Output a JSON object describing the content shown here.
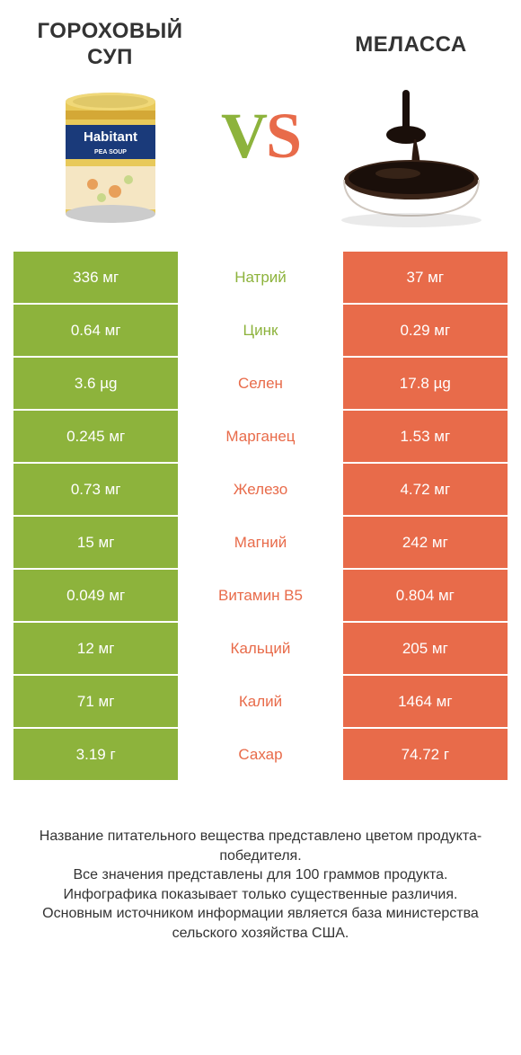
{
  "colors": {
    "left": "#8db33c",
    "right": "#e86b4a",
    "rowMidBg": "#ffffff",
    "text": "#333333"
  },
  "header": {
    "leftTitle": "ГОРОХОВЫЙ СУП",
    "rightTitle": "МЕЛАССА",
    "vsLetterV": "V",
    "vsLetterS": "S"
  },
  "rows": [
    {
      "left": "336 мг",
      "label": "Натрий",
      "right": "37 мг",
      "winner": "left"
    },
    {
      "left": "0.64 мг",
      "label": "Цинк",
      "right": "0.29 мг",
      "winner": "left"
    },
    {
      "left": "3.6 µg",
      "label": "Селен",
      "right": "17.8 µg",
      "winner": "right"
    },
    {
      "left": "0.245 мг",
      "label": "Марганец",
      "right": "1.53 мг",
      "winner": "right"
    },
    {
      "left": "0.73 мг",
      "label": "Железо",
      "right": "4.72 мг",
      "winner": "right"
    },
    {
      "left": "15 мг",
      "label": "Магний",
      "right": "242 мг",
      "winner": "right"
    },
    {
      "left": "0.049 мг",
      "label": "Витамин B5",
      "right": "0.804 мг",
      "winner": "right"
    },
    {
      "left": "12 мг",
      "label": "Кальций",
      "right": "205 мг",
      "winner": "right"
    },
    {
      "left": "71 мг",
      "label": "Калий",
      "right": "1464 мг",
      "winner": "right"
    },
    {
      "left": "3.19 г",
      "label": "Сахар",
      "right": "74.72 г",
      "winner": "right"
    }
  ],
  "footer": {
    "line1": "Название питательного вещества представлено цветом продукта-победителя.",
    "line2": "Все значения представлены для 100 граммов продукта.",
    "line3": "Инфографика показывает только существенные различия.",
    "line4": "Основным источником информации является база министерства сельского хозяйства США."
  }
}
